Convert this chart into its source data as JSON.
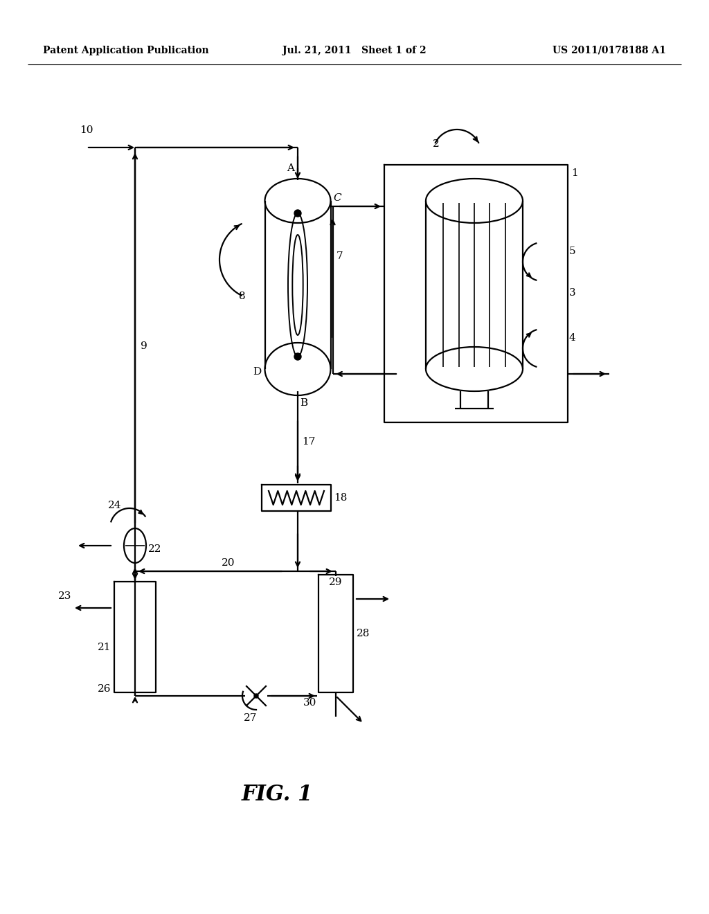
{
  "bg_color": "#ffffff",
  "lc": "#000000",
  "header_left": "Patent Application Publication",
  "header_mid": "Jul. 21, 2011   Sheet 1 of 2",
  "header_right": "US 2011/0178188 A1",
  "figure_label": "FIG. 1",
  "lw": 1.6
}
